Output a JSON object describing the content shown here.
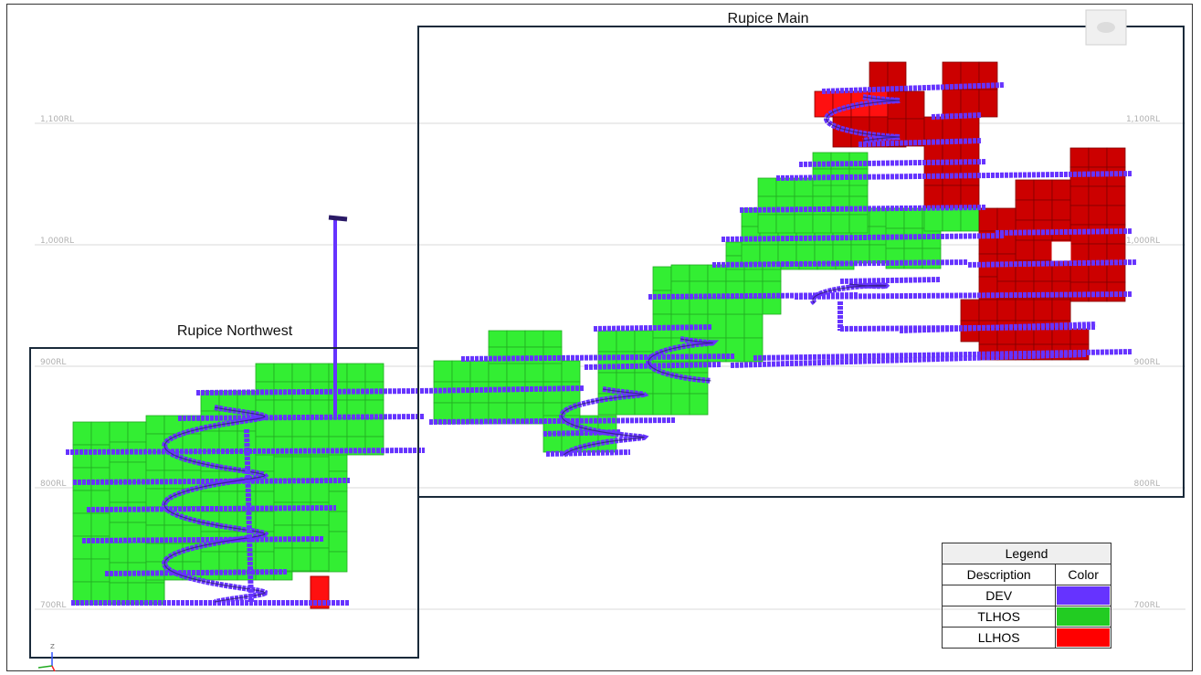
{
  "areas": {
    "main_title": "Rupice Main",
    "northwest_title": "Rupice Northwest"
  },
  "levels": [
    {
      "label": "1,100RL",
      "rl": 1100
    },
    {
      "label": "1,000RL",
      "rl": 1000
    },
    {
      "label": "900RL",
      "rl": 900
    },
    {
      "label": "800RL",
      "rl": 800
    },
    {
      "label": "700RL",
      "rl": 700
    }
  ],
  "legend": {
    "title": "Legend",
    "description_header": "Description",
    "color_header": "Color",
    "items": [
      {
        "description": "DEV",
        "color": "#6633ff"
      },
      {
        "description": "TLHOS",
        "color": "#22cc22"
      },
      {
        "description": "LLHOS",
        "color": "#ff0000"
      }
    ]
  },
  "axis_triad": {
    "label": "Z"
  },
  "colors": {
    "dev": "#6633ff",
    "dev_dark": "#2a1a66",
    "tlhos": "#33ee33",
    "tlhos_dark": "#22aa22",
    "llhos": "#cc0000",
    "llhos_bright": "#ff1010",
    "level_line": "#d8d8d8",
    "box_border": "#1a2a3a"
  }
}
